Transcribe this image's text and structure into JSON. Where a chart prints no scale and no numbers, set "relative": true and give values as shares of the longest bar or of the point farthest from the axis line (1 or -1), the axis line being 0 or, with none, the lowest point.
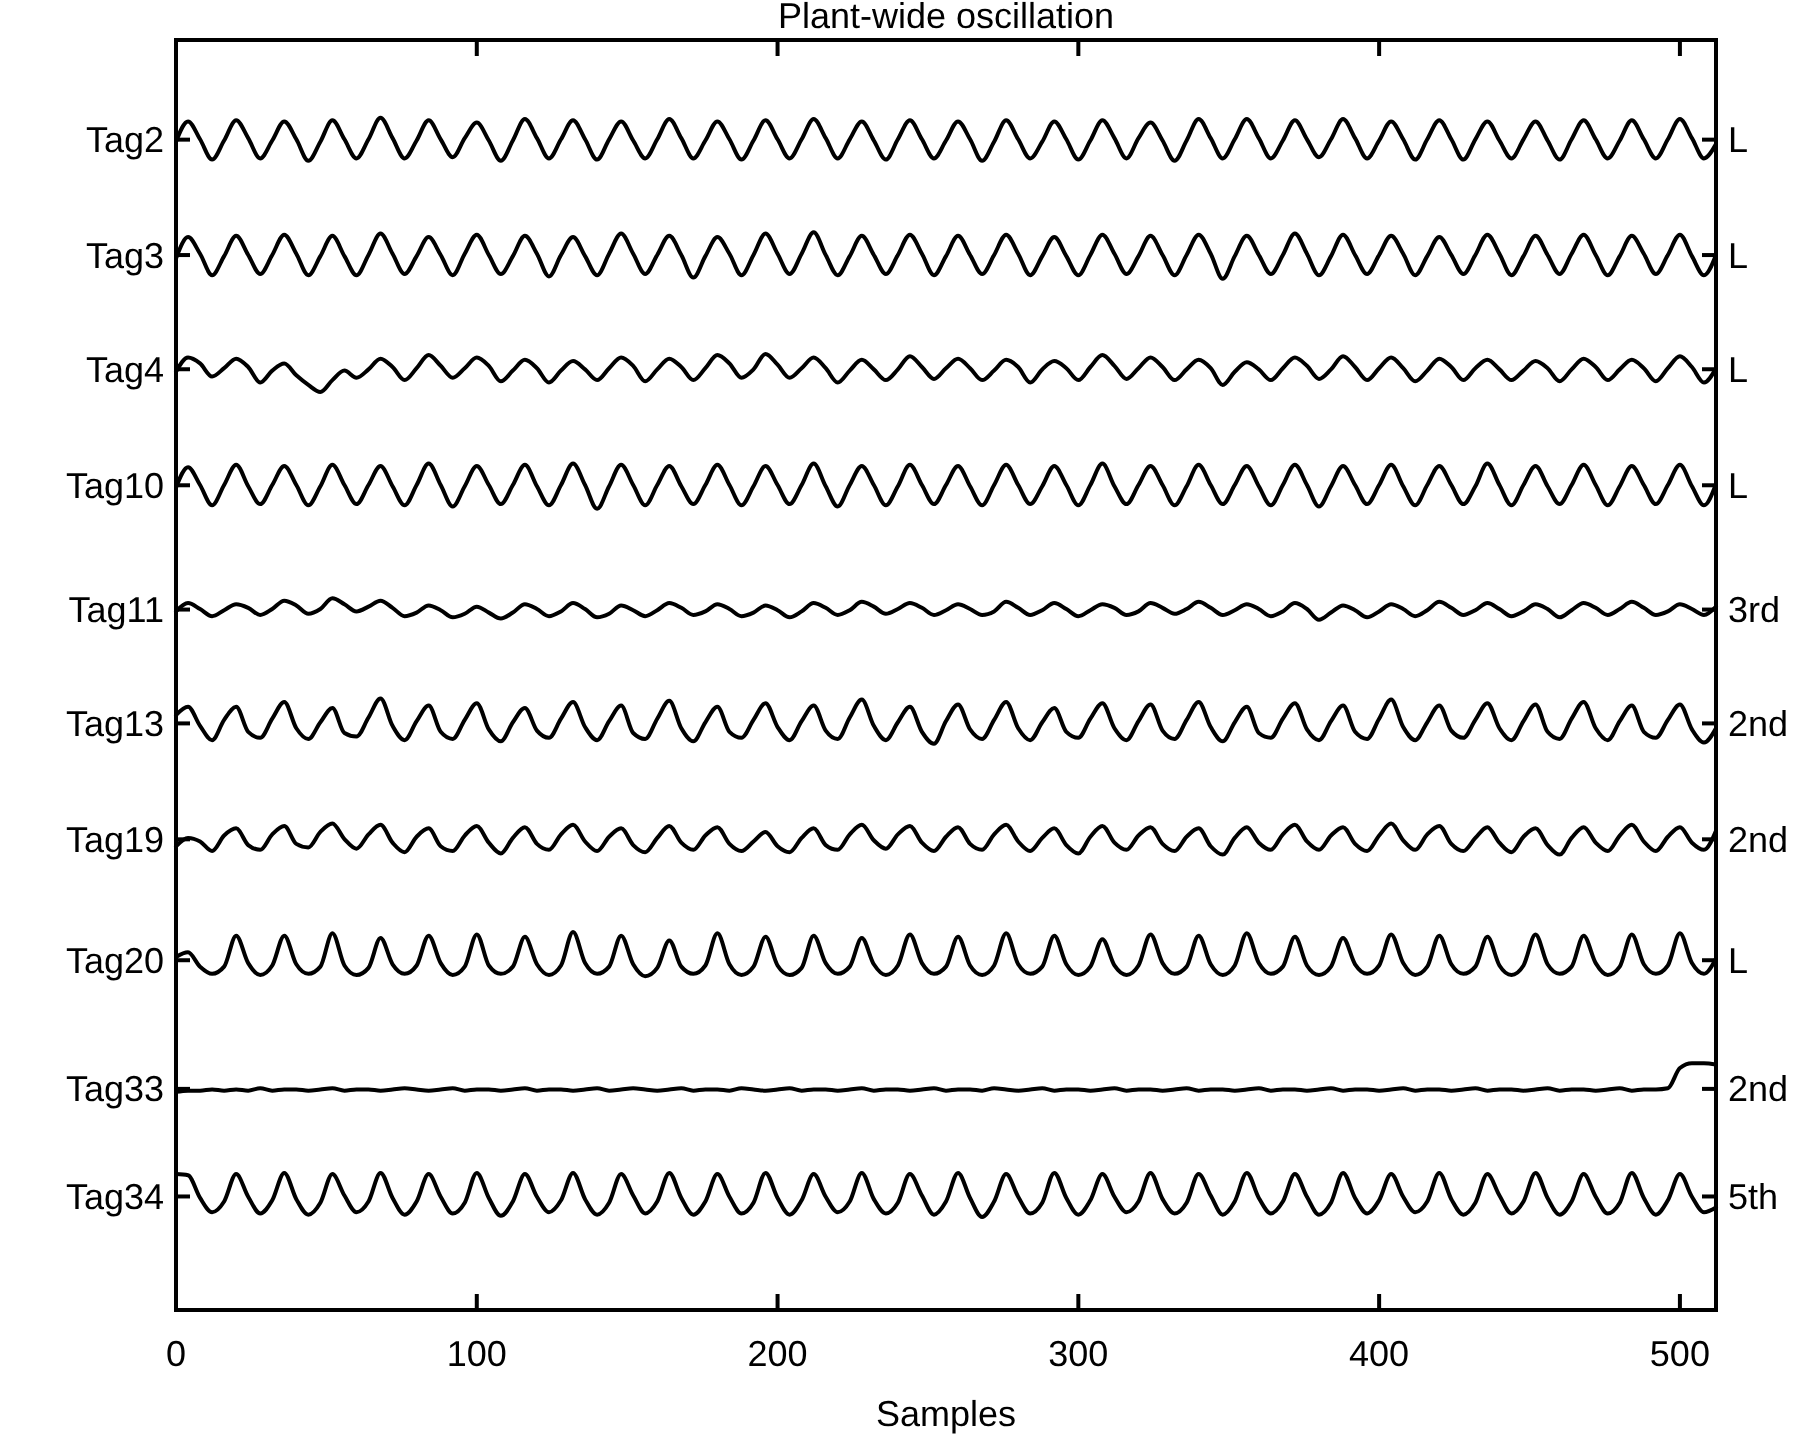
{
  "chart_data": {
    "type": "line",
    "title": "Plant-wide oscillation",
    "xlabel": "Samples",
    "relative": true,
    "legend": "left",
    "xlim": [
      0,
      512
    ],
    "xticks": [
      0,
      100,
      200,
      300,
      400,
      500
    ],
    "x": [
      0,
      4,
      8,
      12,
      16,
      20,
      24,
      28,
      32,
      36,
      40,
      44,
      48,
      52,
      56,
      60,
      64,
      68,
      72,
      76,
      80,
      84,
      88,
      92,
      96,
      100,
      104,
      108,
      112,
      116,
      120,
      124,
      128,
      132,
      136,
      140,
      144,
      148,
      152,
      156,
      160,
      164,
      168,
      172,
      176,
      180,
      184,
      188,
      192,
      196,
      200,
      204,
      208,
      212,
      216,
      220,
      224,
      228,
      232,
      236,
      240,
      244,
      248,
      252,
      256,
      260,
      264,
      268,
      272,
      276,
      280,
      284,
      288,
      292,
      296,
      300,
      304,
      308,
      312,
      316,
      320,
      324,
      328,
      332,
      336,
      340,
      344,
      348,
      352,
      356,
      360,
      364,
      368,
      372,
      376,
      380,
      384,
      388,
      392,
      396,
      400,
      404,
      408,
      412,
      416,
      420,
      424,
      428,
      432,
      436,
      440,
      444,
      448,
      452,
      456,
      460,
      464,
      468,
      472,
      476,
      480,
      484,
      488,
      492,
      496,
      500,
      504,
      508,
      512
    ],
    "series": [
      {
        "name": "Tag2",
        "color": "#000000",
        "values": [
          0.98,
          0.997,
          0.982,
          0.965,
          0.981,
          0.998,
          0.983,
          0.966,
          0.981,
          0.997,
          0.982,
          0.964,
          0.98,
          0.998,
          0.982,
          0.966,
          0.982,
          1.0,
          0.983,
          0.966,
          0.981,
          0.998,
          0.982,
          0.967,
          0.983,
          0.996,
          0.981,
          0.964,
          0.981,
          0.999,
          0.983,
          0.966,
          0.982,
          0.998,
          0.982,
          0.965,
          0.982,
          0.997,
          0.981,
          0.966,
          0.982,
          0.999,
          0.983,
          0.966,
          0.981,
          0.997,
          0.982,
          0.965,
          0.981,
          0.998,
          0.982,
          0.966,
          0.982,
          0.999,
          0.983,
          0.966,
          0.982,
          0.997,
          0.981,
          0.965,
          0.982,
          0.998,
          0.982,
          0.966,
          0.981,
          0.997,
          0.982,
          0.964,
          0.98,
          0.998,
          0.982,
          0.966,
          0.98,
          0.997,
          0.982,
          0.965,
          0.981,
          0.998,
          0.983,
          0.966,
          0.983,
          0.996,
          0.981,
          0.964,
          0.981,
          0.999,
          0.983,
          0.966,
          0.982,
          0.999,
          0.983,
          0.966,
          0.981,
          0.998,
          0.982,
          0.967,
          0.982,
          0.999,
          0.983,
          0.966,
          0.981,
          0.997,
          0.982,
          0.965,
          0.982,
          0.998,
          0.982,
          0.965,
          0.982,
          0.997,
          0.981,
          0.966,
          0.982,
          0.997,
          0.981,
          0.965,
          0.982,
          0.998,
          0.982,
          0.966,
          0.981,
          0.998,
          0.982,
          0.966,
          0.982,
          0.999,
          0.983,
          0.966,
          0.978
        ]
      },
      {
        "name": "Tag3",
        "color": "#000000",
        "values": [
          0.882,
          0.9,
          0.886,
          0.868,
          0.884,
          0.901,
          0.885,
          0.869,
          0.885,
          0.902,
          0.886,
          0.868,
          0.884,
          0.901,
          0.884,
          0.868,
          0.885,
          0.903,
          0.886,
          0.869,
          0.884,
          0.9,
          0.885,
          0.868,
          0.886,
          0.902,
          0.885,
          0.869,
          0.884,
          0.901,
          0.886,
          0.867,
          0.885,
          0.9,
          0.884,
          0.868,
          0.886,
          0.903,
          0.886,
          0.869,
          0.885,
          0.901,
          0.885,
          0.866,
          0.884,
          0.9,
          0.886,
          0.868,
          0.885,
          0.903,
          0.886,
          0.869,
          0.886,
          0.904,
          0.885,
          0.868,
          0.884,
          0.901,
          0.885,
          0.869,
          0.885,
          0.902,
          0.886,
          0.868,
          0.884,
          0.901,
          0.885,
          0.869,
          0.885,
          0.902,
          0.886,
          0.868,
          0.884,
          0.9,
          0.884,
          0.868,
          0.885,
          0.902,
          0.886,
          0.869,
          0.884,
          0.901,
          0.885,
          0.868,
          0.885,
          0.902,
          0.886,
          0.865,
          0.884,
          0.901,
          0.885,
          0.869,
          0.885,
          0.903,
          0.886,
          0.868,
          0.884,
          0.902,
          0.885,
          0.869,
          0.885,
          0.901,
          0.886,
          0.868,
          0.884,
          0.9,
          0.885,
          0.869,
          0.885,
          0.902,
          0.886,
          0.868,
          0.884,
          0.901,
          0.885,
          0.869,
          0.886,
          0.902,
          0.885,
          0.868,
          0.884,
          0.901,
          0.886,
          0.869,
          0.885,
          0.902,
          0.884,
          0.868,
          0.885
        ]
      },
      {
        "name": "Tag4",
        "color": "#000000",
        "values": [
          0.787,
          0.799,
          0.794,
          0.783,
          0.79,
          0.798,
          0.791,
          0.778,
          0.788,
          0.794,
          0.784,
          0.776,
          0.77,
          0.78,
          0.788,
          0.782,
          0.789,
          0.798,
          0.791,
          0.78,
          0.79,
          0.801,
          0.792,
          0.782,
          0.79,
          0.799,
          0.792,
          0.779,
          0.788,
          0.797,
          0.79,
          0.778,
          0.788,
          0.796,
          0.789,
          0.78,
          0.79,
          0.799,
          0.792,
          0.779,
          0.789,
          0.798,
          0.791,
          0.78,
          0.79,
          0.801,
          0.794,
          0.782,
          0.789,
          0.802,
          0.793,
          0.782,
          0.79,
          0.799,
          0.79,
          0.778,
          0.788,
          0.797,
          0.789,
          0.78,
          0.789,
          0.8,
          0.791,
          0.781,
          0.79,
          0.798,
          0.79,
          0.78,
          0.788,
          0.797,
          0.791,
          0.778,
          0.789,
          0.796,
          0.79,
          0.78,
          0.791,
          0.801,
          0.792,
          0.781,
          0.79,
          0.799,
          0.791,
          0.78,
          0.789,
          0.797,
          0.79,
          0.776,
          0.787,
          0.795,
          0.789,
          0.78,
          0.79,
          0.799,
          0.792,
          0.781,
          0.789,
          0.8,
          0.791,
          0.78,
          0.79,
          0.799,
          0.79,
          0.779,
          0.788,
          0.798,
          0.791,
          0.78,
          0.79,
          0.797,
          0.789,
          0.78,
          0.788,
          0.796,
          0.79,
          0.779,
          0.789,
          0.798,
          0.791,
          0.78,
          0.789,
          0.797,
          0.79,
          0.779,
          0.79,
          0.8,
          0.791,
          0.778,
          0.79
        ]
      },
      {
        "name": "Tag10",
        "color": "#000000",
        "values": [
          0.69,
          0.707,
          0.692,
          0.675,
          0.692,
          0.709,
          0.691,
          0.676,
          0.692,
          0.708,
          0.692,
          0.675,
          0.691,
          0.709,
          0.692,
          0.676,
          0.692,
          0.708,
          0.691,
          0.675,
          0.692,
          0.71,
          0.692,
          0.674,
          0.691,
          0.708,
          0.692,
          0.676,
          0.692,
          0.709,
          0.691,
          0.675,
          0.692,
          0.71,
          0.692,
          0.672,
          0.691,
          0.709,
          0.692,
          0.675,
          0.692,
          0.708,
          0.691,
          0.676,
          0.692,
          0.709,
          0.692,
          0.675,
          0.691,
          0.708,
          0.692,
          0.676,
          0.692,
          0.71,
          0.691,
          0.674,
          0.692,
          0.708,
          0.692,
          0.675,
          0.691,
          0.709,
          0.692,
          0.676,
          0.692,
          0.708,
          0.691,
          0.675,
          0.692,
          0.709,
          0.692,
          0.676,
          0.691,
          0.708,
          0.692,
          0.675,
          0.692,
          0.71,
          0.691,
          0.676,
          0.692,
          0.708,
          0.692,
          0.675,
          0.691,
          0.709,
          0.692,
          0.676,
          0.692,
          0.708,
          0.691,
          0.675,
          0.692,
          0.709,
          0.692,
          0.674,
          0.691,
          0.708,
          0.692,
          0.676,
          0.692,
          0.709,
          0.691,
          0.675,
          0.692,
          0.708,
          0.692,
          0.676,
          0.691,
          0.71,
          0.692,
          0.675,
          0.692,
          0.708,
          0.691,
          0.676,
          0.692,
          0.709,
          0.692,
          0.675,
          0.691,
          0.708,
          0.692,
          0.676,
          0.692,
          0.709,
          0.691,
          0.675,
          0.693
        ]
      },
      {
        "name": "Tag11",
        "color": "#000000",
        "values": [
          0.586,
          0.593,
          0.588,
          0.582,
          0.587,
          0.592,
          0.589,
          0.583,
          0.588,
          0.595,
          0.591,
          0.584,
          0.588,
          0.597,
          0.592,
          0.586,
          0.59,
          0.595,
          0.589,
          0.582,
          0.585,
          0.591,
          0.587,
          0.581,
          0.584,
          0.59,
          0.585,
          0.58,
          0.585,
          0.592,
          0.588,
          0.582,
          0.586,
          0.593,
          0.588,
          0.581,
          0.584,
          0.591,
          0.587,
          0.582,
          0.587,
          0.593,
          0.589,
          0.583,
          0.586,
          0.592,
          0.588,
          0.582,
          0.585,
          0.591,
          0.587,
          0.581,
          0.586,
          0.593,
          0.589,
          0.583,
          0.587,
          0.594,
          0.59,
          0.584,
          0.588,
          0.593,
          0.589,
          0.583,
          0.587,
          0.592,
          0.588,
          0.583,
          0.586,
          0.594,
          0.589,
          0.583,
          0.587,
          0.593,
          0.588,
          0.582,
          0.587,
          0.592,
          0.589,
          0.583,
          0.586,
          0.593,
          0.589,
          0.584,
          0.588,
          0.594,
          0.589,
          0.583,
          0.587,
          0.592,
          0.588,
          0.582,
          0.586,
          0.593,
          0.588,
          0.579,
          0.585,
          0.591,
          0.587,
          0.581,
          0.586,
          0.592,
          0.588,
          0.582,
          0.587,
          0.594,
          0.589,
          0.583,
          0.587,
          0.593,
          0.588,
          0.582,
          0.586,
          0.592,
          0.588,
          0.581,
          0.587,
          0.593,
          0.589,
          0.583,
          0.588,
          0.594,
          0.589,
          0.583,
          0.586,
          0.592,
          0.588,
          0.583,
          0.59
        ]
      },
      {
        "name": "Tag13",
        "color": "#000000",
        "values": [
          0.499,
          0.506,
          0.49,
          0.478,
          0.495,
          0.506,
          0.485,
          0.48,
          0.496,
          0.51,
          0.488,
          0.479,
          0.493,
          0.505,
          0.484,
          0.481,
          0.497,
          0.513,
          0.49,
          0.478,
          0.494,
          0.507,
          0.485,
          0.479,
          0.495,
          0.509,
          0.487,
          0.477,
          0.493,
          0.505,
          0.486,
          0.48,
          0.496,
          0.51,
          0.489,
          0.478,
          0.494,
          0.507,
          0.484,
          0.479,
          0.496,
          0.511,
          0.488,
          0.477,
          0.493,
          0.506,
          0.485,
          0.48,
          0.495,
          0.509,
          0.489,
          0.478,
          0.494,
          0.507,
          0.486,
          0.479,
          0.497,
          0.512,
          0.49,
          0.478,
          0.493,
          0.506,
          0.485,
          0.475,
          0.494,
          0.508,
          0.487,
          0.479,
          0.495,
          0.51,
          0.488,
          0.478,
          0.493,
          0.505,
          0.485,
          0.48,
          0.496,
          0.509,
          0.488,
          0.478,
          0.494,
          0.508,
          0.486,
          0.479,
          0.495,
          0.51,
          0.489,
          0.477,
          0.493,
          0.506,
          0.484,
          0.48,
          0.496,
          0.509,
          0.487,
          0.478,
          0.494,
          0.507,
          0.485,
          0.479,
          0.496,
          0.512,
          0.489,
          0.478,
          0.493,
          0.507,
          0.486,
          0.48,
          0.495,
          0.509,
          0.488,
          0.478,
          0.494,
          0.508,
          0.485,
          0.479,
          0.496,
          0.51,
          0.488,
          0.478,
          0.494,
          0.507,
          0.485,
          0.48,
          0.495,
          0.508,
          0.487,
          0.476,
          0.488
        ]
      },
      {
        "name": "Tag19",
        "color": "#000000",
        "values": [
          0.389,
          0.396,
          0.393,
          0.385,
          0.398,
          0.404,
          0.39,
          0.386,
          0.399,
          0.406,
          0.391,
          0.388,
          0.401,
          0.408,
          0.395,
          0.387,
          0.399,
          0.407,
          0.392,
          0.384,
          0.397,
          0.404,
          0.389,
          0.385,
          0.398,
          0.406,
          0.392,
          0.383,
          0.396,
          0.405,
          0.391,
          0.386,
          0.399,
          0.407,
          0.393,
          0.385,
          0.397,
          0.404,
          0.39,
          0.384,
          0.396,
          0.406,
          0.392,
          0.386,
          0.398,
          0.405,
          0.391,
          0.385,
          0.393,
          0.401,
          0.389,
          0.384,
          0.396,
          0.404,
          0.39,
          0.386,
          0.399,
          0.407,
          0.394,
          0.387,
          0.399,
          0.406,
          0.392,
          0.385,
          0.397,
          0.405,
          0.391,
          0.386,
          0.399,
          0.407,
          0.393,
          0.385,
          0.396,
          0.404,
          0.39,
          0.383,
          0.397,
          0.406,
          0.392,
          0.386,
          0.398,
          0.405,
          0.391,
          0.385,
          0.397,
          0.404,
          0.389,
          0.382,
          0.396,
          0.405,
          0.392,
          0.386,
          0.399,
          0.407,
          0.393,
          0.386,
          0.398,
          0.405,
          0.391,
          0.385,
          0.398,
          0.408,
          0.394,
          0.386,
          0.399,
          0.406,
          0.391,
          0.385,
          0.396,
          0.405,
          0.392,
          0.384,
          0.397,
          0.404,
          0.39,
          0.382,
          0.396,
          0.405,
          0.392,
          0.385,
          0.398,
          0.407,
          0.393,
          0.385,
          0.397,
          0.405,
          0.392,
          0.386,
          0.402
        ]
      },
      {
        "name": "Tag20",
        "color": "#000000",
        "values": [
          0.296,
          0.3,
          0.288,
          0.282,
          0.288,
          0.314,
          0.291,
          0.281,
          0.289,
          0.314,
          0.29,
          0.282,
          0.288,
          0.316,
          0.289,
          0.281,
          0.287,
          0.312,
          0.29,
          0.282,
          0.289,
          0.314,
          0.291,
          0.281,
          0.288,
          0.315,
          0.289,
          0.282,
          0.288,
          0.313,
          0.29,
          0.281,
          0.289,
          0.317,
          0.291,
          0.282,
          0.288,
          0.314,
          0.29,
          0.28,
          0.287,
          0.31,
          0.288,
          0.282,
          0.289,
          0.316,
          0.29,
          0.281,
          0.288,
          0.313,
          0.289,
          0.281,
          0.287,
          0.314,
          0.291,
          0.282,
          0.288,
          0.312,
          0.29,
          0.281,
          0.289,
          0.315,
          0.291,
          0.282,
          0.288,
          0.313,
          0.289,
          0.281,
          0.289,
          0.316,
          0.29,
          0.282,
          0.288,
          0.314,
          0.29,
          0.281,
          0.288,
          0.311,
          0.289,
          0.281,
          0.289,
          0.315,
          0.291,
          0.282,
          0.288,
          0.314,
          0.29,
          0.281,
          0.289,
          0.316,
          0.291,
          0.282,
          0.288,
          0.313,
          0.289,
          0.281,
          0.288,
          0.312,
          0.29,
          0.282,
          0.289,
          0.315,
          0.291,
          0.281,
          0.288,
          0.314,
          0.29,
          0.282,
          0.288,
          0.313,
          0.289,
          0.281,
          0.289,
          0.315,
          0.29,
          0.282,
          0.288,
          0.314,
          0.291,
          0.281,
          0.288,
          0.315,
          0.29,
          0.282,
          0.289,
          0.316,
          0.291,
          0.282,
          0.295
        ]
      },
      {
        "name": "Tag33",
        "color": "#000000",
        "values": [
          0.183,
          0.184,
          0.184,
          0.185,
          0.184,
          0.185,
          0.184,
          0.186,
          0.184,
          0.185,
          0.185,
          0.184,
          0.185,
          0.186,
          0.184,
          0.185,
          0.185,
          0.184,
          0.185,
          0.186,
          0.185,
          0.184,
          0.185,
          0.186,
          0.184,
          0.185,
          0.185,
          0.184,
          0.185,
          0.186,
          0.184,
          0.185,
          0.185,
          0.184,
          0.185,
          0.186,
          0.184,
          0.185,
          0.186,
          0.185,
          0.184,
          0.185,
          0.186,
          0.184,
          0.185,
          0.185,
          0.184,
          0.186,
          0.185,
          0.184,
          0.185,
          0.186,
          0.184,
          0.185,
          0.185,
          0.184,
          0.185,
          0.186,
          0.184,
          0.185,
          0.185,
          0.184,
          0.185,
          0.186,
          0.184,
          0.185,
          0.185,
          0.184,
          0.186,
          0.185,
          0.184,
          0.185,
          0.186,
          0.184,
          0.185,
          0.185,
          0.184,
          0.185,
          0.186,
          0.184,
          0.185,
          0.185,
          0.184,
          0.185,
          0.186,
          0.184,
          0.185,
          0.185,
          0.184,
          0.185,
          0.186,
          0.184,
          0.185,
          0.185,
          0.184,
          0.185,
          0.186,
          0.184,
          0.185,
          0.185,
          0.184,
          0.185,
          0.186,
          0.184,
          0.185,
          0.185,
          0.184,
          0.185,
          0.186,
          0.184,
          0.185,
          0.185,
          0.184,
          0.185,
          0.186,
          0.184,
          0.185,
          0.185,
          0.184,
          0.185,
          0.186,
          0.184,
          0.185,
          0.185,
          0.186,
          0.203,
          0.207,
          0.207,
          0.206
        ]
      },
      {
        "name": "Tag34",
        "color": "#000000",
        "values": [
          0.114,
          0.113,
          0.094,
          0.082,
          0.091,
          0.114,
          0.095,
          0.081,
          0.092,
          0.115,
          0.093,
          0.08,
          0.09,
          0.114,
          0.096,
          0.082,
          0.091,
          0.115,
          0.094,
          0.08,
          0.091,
          0.114,
          0.095,
          0.081,
          0.09,
          0.115,
          0.094,
          0.079,
          0.091,
          0.114,
          0.095,
          0.082,
          0.092,
          0.115,
          0.093,
          0.08,
          0.09,
          0.114,
          0.096,
          0.081,
          0.091,
          0.115,
          0.094,
          0.08,
          0.091,
          0.114,
          0.095,
          0.081,
          0.09,
          0.115,
          0.094,
          0.08,
          0.092,
          0.114,
          0.095,
          0.082,
          0.091,
          0.115,
          0.093,
          0.081,
          0.09,
          0.114,
          0.096,
          0.08,
          0.091,
          0.115,
          0.094,
          0.078,
          0.091,
          0.114,
          0.095,
          0.081,
          0.09,
          0.115,
          0.094,
          0.08,
          0.092,
          0.114,
          0.095,
          0.082,
          0.091,
          0.115,
          0.093,
          0.081,
          0.09,
          0.114,
          0.096,
          0.08,
          0.091,
          0.115,
          0.094,
          0.081,
          0.091,
          0.114,
          0.095,
          0.08,
          0.09,
          0.115,
          0.094,
          0.081,
          0.092,
          0.114,
          0.095,
          0.082,
          0.091,
          0.115,
          0.093,
          0.08,
          0.09,
          0.114,
          0.096,
          0.081,
          0.091,
          0.115,
          0.094,
          0.08,
          0.091,
          0.114,
          0.095,
          0.081,
          0.09,
          0.115,
          0.094,
          0.08,
          0.092,
          0.114,
          0.095,
          0.082,
          0.086
        ]
      }
    ],
    "annotations": [
      "L",
      "L",
      "L",
      "L",
      "3rd",
      "2nd",
      "2nd",
      "L",
      "2nd",
      "5th"
    ]
  }
}
